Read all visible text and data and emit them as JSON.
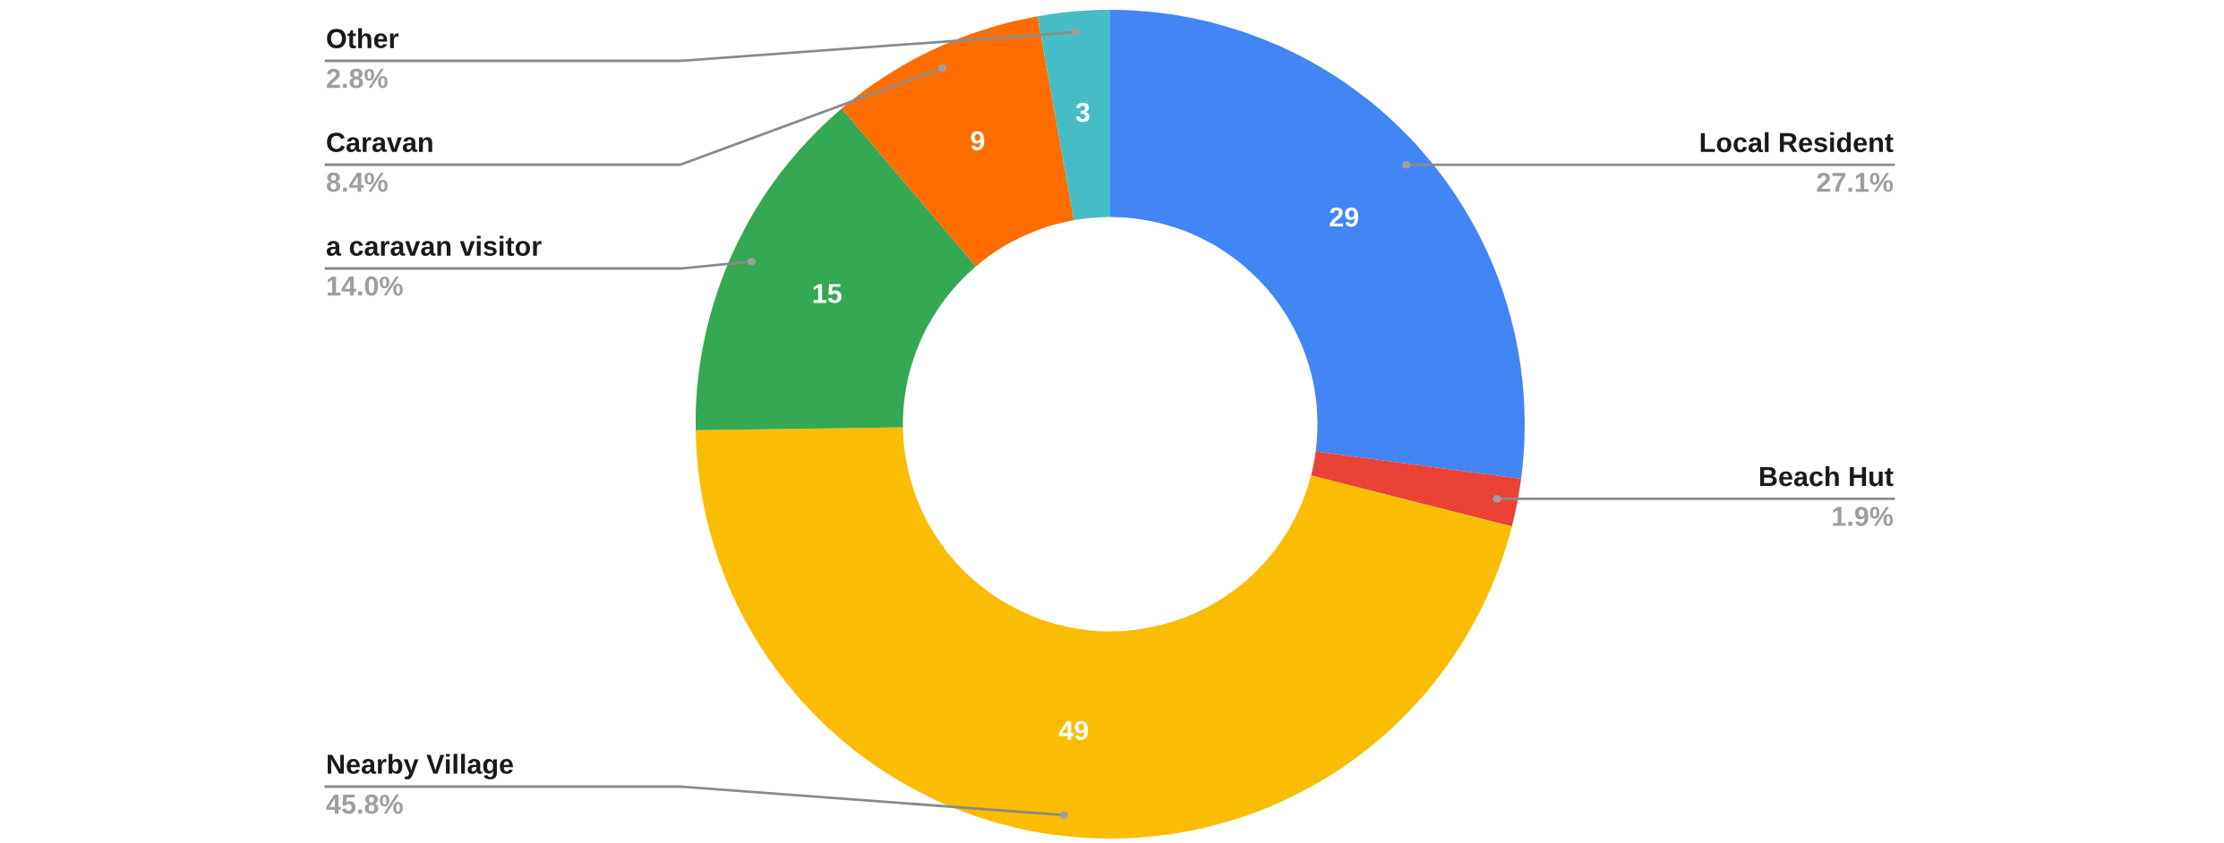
{
  "chart_data": {
    "type": "donut",
    "categories": [
      "Local Resident",
      "Beach Hut",
      "Nearby Village",
      "a caravan visitor",
      "Caravan",
      "Other"
    ],
    "values": [
      29,
      2,
      49,
      15,
      9,
      3
    ],
    "colors": [
      "#4285f4",
      "#ea4335",
      "#fbbc04",
      "#34a853",
      "#ff6d01",
      "#46bdc6"
    ],
    "value_labels": [
      "29",
      null,
      "49",
      "15",
      "9",
      "3"
    ],
    "annotations": [
      "27.1%",
      "1.9%",
      "45.8%",
      "14.0%",
      "8.4%",
      "2.8%"
    ]
  }
}
